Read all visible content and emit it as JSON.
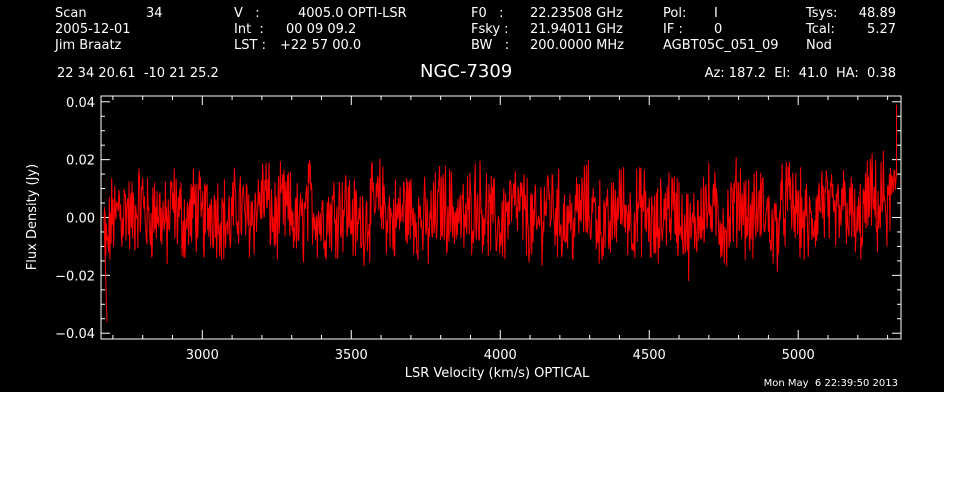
{
  "header": {
    "scan_label": "Scan",
    "scan_value": "34",
    "date": "2005-12-01",
    "observer": "Jim Braatz",
    "v_label": "V   :",
    "v_value": "4005.0 OPTI-LSR",
    "int_label": "Int  :",
    "int_value": "00 09 09.2",
    "lst_label": "LST :",
    "lst_value": "+22 57 00.0",
    "f0_label": "F0   :",
    "f0_value": "22.23508 GHz",
    "fsky_label": "Fsky :",
    "fsky_value": "21.94011 GHz",
    "bw_label": "BW   :",
    "bw_value": "200.0000 MHz",
    "pol_label": "Pol:",
    "pol_value": "I",
    "if_label": "IF :",
    "if_value": "0",
    "project": "AGBT05C_051_09",
    "tsys_label": "Tsys:",
    "tsys_value": "48.89",
    "tcal_label": "Tcal:",
    "tcal_value": "5.27",
    "mode": "Nod",
    "coords": "22 34 20.61  -10 21 25.2",
    "source": "NGC-7309",
    "pointing": "Az: 187.2  El:  41.0  HA:  0.38"
  },
  "timestamp": "Mon May  6 22:39:50 2013",
  "colors": {
    "background": "#000000",
    "foreground": "#ffffff",
    "trace": "#ff0000"
  },
  "chart_data": {
    "type": "line",
    "xlabel": "LSR Velocity (km/s) OPTICAL",
    "ylabel": "Flux Density (Jy)",
    "xlim": [
      2660,
      5345
    ],
    "ylim": [
      -0.042,
      0.042
    ],
    "xticks": [
      3000,
      3500,
      4000,
      4500,
      5000
    ],
    "xtick_labels": [
      "3000",
      "3500",
      "4000",
      "4500",
      "5000"
    ],
    "yticks": [
      -0.04,
      -0.02,
      0.0,
      0.02,
      0.04
    ],
    "ytick_labels": [
      "−0.04",
      "−0.02",
      "0.00",
      "0.02",
      "0.04"
    ],
    "series": [
      {
        "x": [
          2670,
          2680,
          2690,
          2700,
          2710,
          2720,
          2730,
          2745,
          2760,
          2780,
          2800,
          2820,
          2840,
          2860,
          2880,
          2900,
          2925,
          2950,
          2975,
          3000,
          3030,
          3060,
          3090,
          3120,
          3150,
          3180,
          3210,
          3240,
          3270,
          3300,
          3330,
          3360,
          3400,
          3440,
          3480,
          3520,
          3560,
          3600,
          3640,
          3680,
          3720,
          3760,
          3800,
          3840,
          3880,
          3920,
          3960,
          4000,
          4040,
          4080,
          4120,
          4160,
          4200,
          4240,
          4280,
          4320,
          4360,
          4400,
          4440,
          4480,
          4520,
          4560,
          4600,
          4640,
          4680,
          4720,
          4760,
          4800,
          4840,
          4880,
          4920,
          4960,
          5000,
          5040,
          5080,
          5120,
          5160,
          5200,
          5240,
          5270,
          5290,
          5300,
          5310,
          5320,
          5330
        ],
        "y": [
          -0.008,
          -0.036,
          -0.012,
          0.004,
          -0.008,
          0.016,
          0.0,
          0.012,
          -0.004,
          0.01,
          0.016,
          -0.006,
          0.008,
          0.004,
          -0.012,
          0.014,
          0.002,
          -0.006,
          0.012,
          -0.004,
          0.01,
          0.004,
          -0.008,
          0.014,
          -0.002,
          0.008,
          0.026,
          -0.006,
          0.01,
          0.002,
          -0.012,
          0.016,
          -0.004,
          0.006,
          0.012,
          -0.008,
          0.004,
          0.016,
          -0.006,
          0.01,
          0.002,
          -0.012,
          0.014,
          0.006,
          -0.004,
          0.018,
          0.002,
          -0.01,
          0.012,
          0.004,
          -0.014,
          0.02,
          0.0,
          -0.006,
          0.014,
          0.004,
          -0.016,
          0.018,
          -0.002,
          0.01,
          -0.018,
          0.014,
          0.004,
          -0.02,
          0.016,
          0.002,
          -0.01,
          0.022,
          -0.004,
          0.012,
          -0.016,
          0.018,
          0.004,
          -0.012,
          0.02,
          -0.006,
          0.014,
          -0.014,
          0.02,
          0.006,
          0.024,
          -0.006,
          0.03,
          0.012,
          0.039
        ]
      }
    ]
  }
}
